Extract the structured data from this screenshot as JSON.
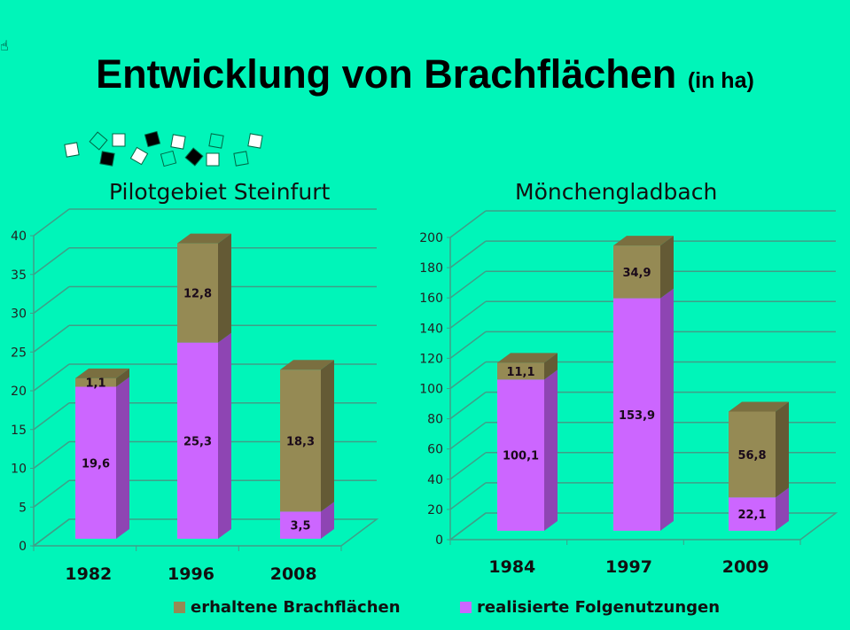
{
  "title": {
    "main": "Entwicklung von Brachflächen",
    "unit": "(in ha)"
  },
  "colors": {
    "background": "#00f5b9",
    "erhaltene": "#958a54",
    "realisierte": "#cc66ff"
  },
  "legend": [
    {
      "label": "erhaltene Brachflächen",
      "color": "#958a54"
    },
    {
      "label": "realisierte Folgenutzungen",
      "color": "#cc66ff"
    }
  ],
  "chart_data": [
    {
      "type": "bar",
      "stacked": true,
      "title": "Pilotgebiet Steinfurt",
      "categories": [
        "1982",
        "1996",
        "2008"
      ],
      "series": [
        {
          "name": "realisierte Folgenutzungen",
          "values": [
            19.6,
            25.3,
            3.5
          ],
          "labels": [
            "19,6",
            "25,3",
            "3,5"
          ]
        },
        {
          "name": "erhaltene Brachflächen",
          "values": [
            1.1,
            12.8,
            18.3
          ],
          "labels": [
            "1,1",
            "12,8",
            "18,3"
          ]
        }
      ],
      "ylim": [
        0,
        40
      ],
      "yticks": [
        0,
        5,
        10,
        15,
        20,
        25,
        30,
        35,
        40
      ],
      "grid": true
    },
    {
      "type": "bar",
      "stacked": true,
      "title": "Mönchengladbach",
      "categories": [
        "1984",
        "1997",
        "2009"
      ],
      "series": [
        {
          "name": "realisierte Folgenutzungen",
          "values": [
            100.1,
            153.9,
            22.1
          ],
          "labels": [
            "100,1",
            "153,9",
            "22,1"
          ]
        },
        {
          "name": "erhaltene Brachflächen",
          "values": [
            11.1,
            34.9,
            56.8
          ],
          "labels": [
            "11,1",
            "34,9",
            "56,8"
          ]
        }
      ],
      "ylim": [
        0,
        200
      ],
      "yticks": [
        0,
        20,
        40,
        60,
        80,
        100,
        120,
        140,
        160,
        180,
        200
      ],
      "grid": true
    }
  ]
}
